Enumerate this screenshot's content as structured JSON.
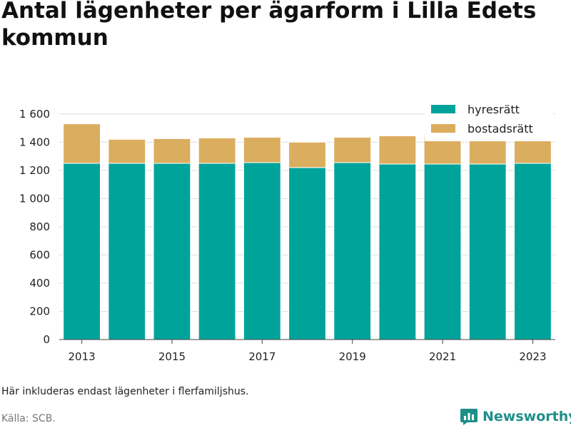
{
  "title": "Antal lägenheter per ägarform i Lilla Edets kommun",
  "note": "Här inkluderas endast lägenheter i flerfamiljshus.",
  "source": "Källa: SCB.",
  "brand": "Newsworthy",
  "colors": {
    "hyresratt": "#00a39a",
    "bostadsratt": "#dbad5e",
    "grid": "#dddddd",
    "brand": "#1f8f8a"
  },
  "chart_data": {
    "type": "bar",
    "stacked": true,
    "categories": [
      "2013",
      "2014",
      "2015",
      "2016",
      "2017",
      "2018",
      "2019",
      "2020",
      "2021",
      "2022",
      "2023"
    ],
    "x_tick_labels": [
      "2013",
      "2015",
      "2017",
      "2019",
      "2021",
      "2023"
    ],
    "series": [
      {
        "name": "hyresrätt",
        "values": [
          1250,
          1250,
          1250,
          1250,
          1255,
          1220,
          1255,
          1245,
          1245,
          1245,
          1250
        ]
      },
      {
        "name": "bostadsrätt",
        "values": [
          280,
          170,
          175,
          180,
          180,
          180,
          180,
          200,
          200,
          195,
          195
        ]
      }
    ],
    "ylim": [
      0,
      1700
    ],
    "yticks": [
      0,
      200,
      400,
      600,
      800,
      1000,
      1200,
      1400,
      1600
    ],
    "ytick_labels": [
      "0",
      "200",
      "400",
      "600",
      "800",
      "1 000",
      "1 200",
      "1 400",
      "1 600"
    ],
    "grid": true,
    "legend_position": "top-right"
  }
}
